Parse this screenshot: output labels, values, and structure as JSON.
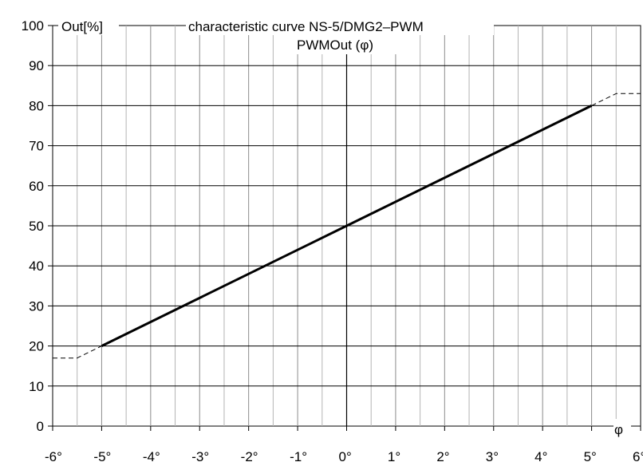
{
  "chart_data": {
    "type": "line",
    "title": "characteristic curve NS-5/DMG2–PWM",
    "subtitle": "PWMOut (φ)",
    "ylabel": "Out[%]",
    "xlabel": "φ",
    "xlim": [
      -6,
      6
    ],
    "ylim": [
      0,
      100
    ],
    "x_tick_labels": [
      "-6°",
      "-5°",
      "-4°",
      "-3°",
      "-2°",
      "-1°",
      "0°",
      "1°",
      "2°",
      "3°",
      "4°",
      "5°",
      "6°"
    ],
    "y_tick_labels": [
      "0",
      "10",
      "20",
      "30",
      "40",
      "50",
      "60",
      "70",
      "80",
      "90",
      "100"
    ],
    "x_minor_step": 0.5,
    "y_step": 10,
    "grid": true,
    "series": [
      {
        "style": "solid",
        "x": [
          -5,
          0,
          5
        ],
        "y": [
          20,
          50,
          80
        ]
      },
      {
        "style": "dashed",
        "x": [
          -6,
          -5.5,
          -5
        ],
        "y": [
          17,
          17,
          20
        ]
      },
      {
        "style": "dashed",
        "x": [
          5,
          5.5,
          6
        ],
        "y": [
          80,
          83,
          83
        ]
      }
    ]
  }
}
